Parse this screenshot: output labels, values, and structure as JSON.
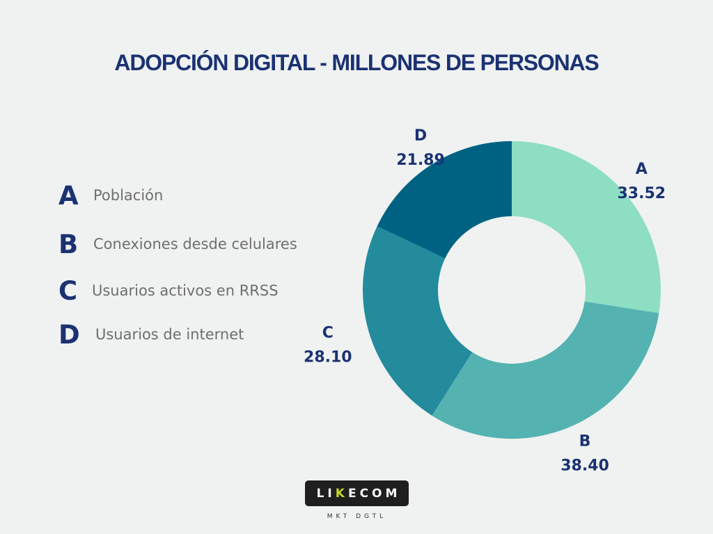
{
  "chart_data": {
    "type": "pie",
    "title": "ADOPCIÓN DIGITAL - MILLONES DE PERSONAS",
    "categories": [
      "A",
      "B",
      "C",
      "D"
    ],
    "values": [
      33.52,
      38.4,
      28.1,
      21.89
    ],
    "value_labels": [
      "33.52",
      "38.40",
      "28.10",
      "21.89"
    ],
    "colors": [
      "#8edec4",
      "#54b3b1",
      "#238b9c",
      "#006282"
    ],
    "donut": true,
    "legend": [
      {
        "letter": "A",
        "label": "Población"
      },
      {
        "letter": "B",
        "label": "Conexiones desde celulares"
      },
      {
        "letter": "C",
        "label": "Usuarios activos en RRSS"
      },
      {
        "letter": "D",
        "label": "Usuarios de internet"
      }
    ],
    "legend_position": "left"
  },
  "logo": {
    "text": "LIKECOM",
    "subtitle": "MKT DGTL",
    "accent_color": "#c6d82e"
  }
}
